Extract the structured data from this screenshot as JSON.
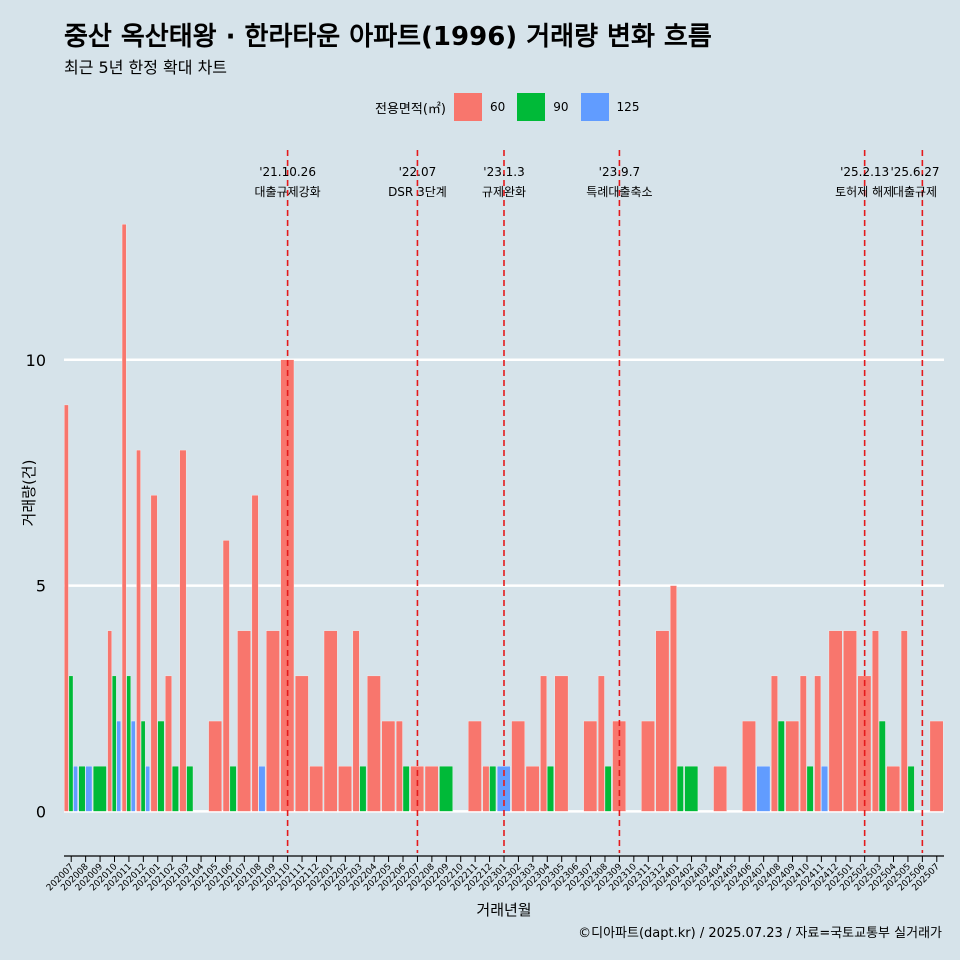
{
  "title": "중산 옥산태왕 · 한라타운 아파트(1996) 거래량 변화 흐름",
  "subtitle": "최근 5년 한정 확대 차트",
  "caption": "©디아파트(dapt.kr) / 2025.07.23 / 자료=국토교통부 실거래가",
  "legend": {
    "title": "전용면적(㎡)",
    "items": [
      "60",
      "90",
      "125"
    ]
  },
  "colors": {
    "60": "#f8766d",
    "90": "#00ba38",
    "125": "#619cff",
    "background": "#d6e3ea",
    "grid": "#ffffff",
    "vline": "#e41a1c"
  },
  "chart_data": {
    "type": "bar",
    "title": "중산 옥산태왕 · 한라타운 아파트(1996) 거래량 변화 흐름",
    "subtitle": "최근 5년 한정 확대 차트",
    "xlabel": "거래년월",
    "ylabel": "거래량(건)",
    "ylim": [
      -0.7,
      14.8
    ],
    "yticks": [
      0,
      5,
      10
    ],
    "grid": true,
    "legend_position": "top",
    "categories": [
      "202007",
      "202008",
      "202009",
      "202010",
      "202011",
      "202012",
      "202101",
      "202102",
      "202103",
      "202104",
      "202105",
      "202106",
      "202107",
      "202108",
      "202109",
      "202110",
      "202111",
      "202112",
      "202201",
      "202202",
      "202203",
      "202204",
      "202205",
      "202206",
      "202207",
      "202208",
      "202209",
      "202210",
      "202211",
      "202212",
      "202301",
      "202302",
      "202303",
      "202304",
      "202305",
      "202306",
      "202307",
      "202308",
      "202309",
      "202310",
      "202311",
      "202312",
      "202401",
      "202402",
      "202403",
      "202404",
      "202405",
      "202406",
      "202407",
      "202408",
      "202409",
      "202410",
      "202411",
      "202412",
      "202501",
      "202502",
      "202503",
      "202504",
      "202505",
      "202506",
      "202507"
    ],
    "series": [
      {
        "name": "60",
        "values": [
          9,
          0,
          0,
          4,
          13,
          8,
          7,
          3,
          8,
          0,
          2,
          6,
          4,
          7,
          4,
          10,
          3,
          1,
          4,
          1,
          4,
          3,
          2,
          2,
          1,
          1,
          0,
          0,
          2,
          1,
          0,
          2,
          1,
          3,
          3,
          0,
          2,
          3,
          2,
          0,
          2,
          4,
          5,
          0,
          0,
          1,
          0,
          2,
          0,
          3,
          2,
          3,
          3,
          4,
          4,
          3,
          4,
          1,
          4,
          0,
          2
        ]
      },
      {
        "name": "90",
        "values": [
          3,
          1,
          1,
          3,
          3,
          2,
          2,
          1,
          1,
          0,
          0,
          1,
          0,
          0,
          0,
          0,
          0,
          0,
          0,
          0,
          1,
          0,
          0,
          1,
          0,
          0,
          1,
          0,
          0,
          1,
          0,
          0,
          0,
          1,
          0,
          0,
          0,
          1,
          0,
          0,
          0,
          0,
          1,
          1,
          0,
          0,
          0,
          0,
          0,
          2,
          0,
          1,
          0,
          0,
          0,
          0,
          2,
          0,
          1,
          0,
          0
        ]
      },
      {
        "name": "125",
        "values": [
          1,
          1,
          0,
          2,
          2,
          1,
          0,
          0,
          0,
          0,
          0,
          0,
          0,
          1,
          0,
          0,
          0,
          0,
          0,
          0,
          0,
          0,
          0,
          0,
          0,
          0,
          0,
          0,
          0,
          0,
          1,
          0,
          0,
          0,
          0,
          0,
          0,
          0,
          0,
          0,
          0,
          0,
          0,
          0,
          0,
          0,
          0,
          0,
          1,
          0,
          0,
          0,
          1,
          0,
          0,
          0,
          0,
          0,
          0,
          0,
          0
        ]
      }
    ],
    "annotations": [
      {
        "x": "202110",
        "date": "'21.10.26",
        "label": "대출규제강화"
      },
      {
        "x": "202207",
        "date": "'22.07",
        "label": "DSR 3단계"
      },
      {
        "x": "202301",
        "date": "'23.1.3",
        "label": "규제완화"
      },
      {
        "x": "202309",
        "date": "'23.9.7",
        "label": "특례대출축소"
      },
      {
        "x": "202502",
        "date": "'25.2.13",
        "label": "토허제 해제"
      },
      {
        "x": "202506",
        "date": "'25.6.27",
        "label": "대출규제"
      }
    ]
  }
}
